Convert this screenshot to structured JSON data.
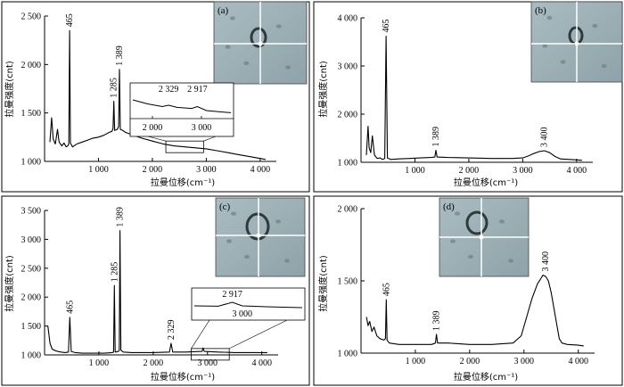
{
  "chart_data": [
    {
      "type": "line",
      "panel_label": "(a)",
      "xlabel": "拉曼位移(cm⁻¹)",
      "ylabel": "拉曼强度(cnt)",
      "xlim": [
        0,
        4300
      ],
      "ylim": [
        1000,
        2500
      ],
      "x_ticks": [
        1000,
        2000,
        3000,
        4000
      ],
      "x_tick_labels": [
        "1 000",
        "2 000",
        "3 000",
        "4 000"
      ],
      "y_ticks": [
        1000,
        1500,
        2000,
        2500
      ],
      "y_tick_labels": [
        "1 000",
        "1 500",
        "2 000",
        "2 500"
      ],
      "x": [
        100,
        130,
        160,
        200,
        240,
        270,
        320,
        360,
        400,
        430,
        450,
        465,
        480,
        520,
        600,
        700,
        800,
        900,
        1000,
        1100,
        1200,
        1250,
        1270,
        1285,
        1300,
        1350,
        1375,
        1389,
        1405,
        1450,
        1500,
        1600,
        1800,
        2000,
        2200,
        2400,
        2600,
        2800,
        3000,
        3200,
        3400,
        3600,
        3800,
        4000,
        4100
      ],
      "y": [
        1200,
        1450,
        1230,
        1180,
        1330,
        1200,
        1160,
        1190,
        1150,
        1160,
        1180,
        2350,
        1190,
        1150,
        1180,
        1200,
        1220,
        1240,
        1250,
        1270,
        1300,
        1310,
        1340,
        1620,
        1320,
        1330,
        1360,
        1950,
        1330,
        1320,
        1300,
        1280,
        1240,
        1210,
        1180,
        1160,
        1150,
        1140,
        1130,
        1110,
        1090,
        1070,
        1050,
        1030,
        1020
      ],
      "peak_labels": [
        {
          "x": 465,
          "y": 2350,
          "text": "465"
        },
        {
          "x": 1285,
          "y": 1620,
          "text": "1 285"
        },
        {
          "x": 1389,
          "y": 1950,
          "text": "1 389"
        }
      ],
      "inset": {
        "region_xlim": [
          2250,
          2950
        ],
        "region_ylim": [
          1100,
          1210
        ],
        "xlim": [
          1600,
          3600
        ],
        "x_ticks": [
          2000,
          3000
        ],
        "x_tick_labels": [
          "2 000",
          "3 000"
        ],
        "x": [
          1600,
          1900,
          2200,
          2329,
          2500,
          2800,
          2917,
          3100,
          3400,
          3600
        ],
        "y": [
          0.7,
          0.55,
          0.45,
          0.5,
          0.42,
          0.38,
          0.45,
          0.3,
          0.25,
          0.22
        ],
        "labels": [
          {
            "x": 2329,
            "text": "2 329"
          },
          {
            "x": 2917,
            "text": "2 917"
          }
        ]
      }
    },
    {
      "type": "line",
      "panel_label": "(b)",
      "xlabel": "拉曼位移(cm⁻¹)",
      "ylabel": "拉曼强度(cnt)",
      "xlim": [
        0,
        4300
      ],
      "ylim": [
        1000,
        4000
      ],
      "x_ticks": [
        1000,
        2000,
        3000,
        4000
      ],
      "x_tick_labels": [
        "1 000",
        "2 000",
        "3 000",
        "4 000"
      ],
      "y_ticks": [
        1000,
        2000,
        3000,
        4000
      ],
      "y_tick_labels": [
        "1 000",
        "2 000",
        "3 000",
        "4 000"
      ],
      "x": [
        100,
        130,
        150,
        180,
        210,
        250,
        300,
        350,
        400,
        440,
        465,
        490,
        550,
        700,
        900,
        1100,
        1300,
        1370,
        1389,
        1410,
        1600,
        2000,
        2400,
        2800,
        3000,
        3100,
        3200,
        3300,
        3400,
        3500,
        3600,
        3700,
        4000,
        4100
      ],
      "y": [
        1150,
        1750,
        1300,
        1200,
        1550,
        1150,
        1080,
        1090,
        1060,
        1080,
        3620,
        1090,
        1060,
        1070,
        1080,
        1090,
        1100,
        1110,
        1250,
        1110,
        1100,
        1090,
        1080,
        1080,
        1090,
        1130,
        1180,
        1220,
        1240,
        1200,
        1120,
        1070,
        1050,
        1040
      ],
      "peak_labels": [
        {
          "x": 465,
          "y": 3620,
          "text": "465"
        },
        {
          "x": 1389,
          "y": 1250,
          "text": "1 389"
        },
        {
          "x": 3400,
          "y": 1240,
          "text": "3 400"
        }
      ]
    },
    {
      "type": "line",
      "panel_label": "(c)",
      "xlabel": "拉曼位移(cm⁻¹)",
      "ylabel": "拉曼强度(cnt)",
      "xlim": [
        0,
        4300
      ],
      "ylim": [
        1000,
        3500
      ],
      "x_ticks": [
        1000,
        2000,
        3000,
        4000
      ],
      "x_tick_labels": [
        "1 000",
        "2 000",
        "3 000",
        "4 000"
      ],
      "y_ticks": [
        1000,
        1500,
        2000,
        2500,
        3000,
        3500
      ],
      "y_tick_labels": [
        "1 000",
        "1 500",
        "2 000",
        "2 500",
        "3 000",
        "3 500"
      ],
      "x": [
        60,
        100,
        140,
        180,
        240,
        300,
        380,
        440,
        465,
        490,
        560,
        700,
        900,
        1100,
        1250,
        1270,
        1285,
        1300,
        1360,
        1375,
        1389,
        1405,
        1450,
        1600,
        1800,
        2000,
        2300,
        2329,
        2360,
        2600,
        2900,
        2917,
        2940,
        3200,
        3500,
        3800,
        4000,
        4100
      ],
      "y": [
        1500,
        1200,
        1100,
        1080,
        1060,
        1050,
        1040,
        1050,
        1650,
        1060,
        1040,
        1030,
        1030,
        1030,
        1040,
        1050,
        2200,
        1050,
        1060,
        1080,
        3150,
        1080,
        1050,
        1040,
        1040,
        1040,
        1050,
        1200,
        1050,
        1050,
        1060,
        1120,
        1060,
        1050,
        1040,
        1040,
        1040,
        1040
      ],
      "peak_labels": [
        {
          "x": 465,
          "y": 1650,
          "text": "465"
        },
        {
          "x": 1285,
          "y": 2200,
          "text": "1 285"
        },
        {
          "x": 1389,
          "y": 3150,
          "text": "1 389"
        },
        {
          "x": 2329,
          "y": 1200,
          "text": "2 329"
        }
      ],
      "inset": {
        "region_xlim": [
          2700,
          3400
        ],
        "region_ylim": [
          1000,
          1110
        ],
        "xlim": [
          2600,
          3500
        ],
        "x": [
          2600,
          2800,
          2917,
          3000,
          3200,
          3500
        ],
        "y": [
          0.5,
          0.48,
          0.7,
          0.5,
          0.45,
          0.4
        ],
        "labels": [
          {
            "x": 2917,
            "text": "2 917",
            "pos": "top"
          },
          {
            "x": 3000,
            "text": "3 000",
            "pos": "bottom"
          }
        ]
      }
    },
    {
      "type": "line",
      "panel_label": "(d)",
      "xlabel": "拉曼位移(cm⁻¹)",
      "ylabel": "拉曼强度(cnt)",
      "xlim": [
        0,
        4300
      ],
      "ylim": [
        1000,
        2000
      ],
      "x_ticks": [
        1000,
        2000,
        3000,
        4000
      ],
      "x_tick_labels": [
        "1 000",
        "2 000",
        "3 000",
        "4 000"
      ],
      "y_ticks": [
        1000,
        1500,
        2000
      ],
      "y_tick_labels": [
        "1 000",
        "1 500",
        "2 000"
      ],
      "x": [
        100,
        130,
        160,
        200,
        240,
        290,
        350,
        420,
        450,
        465,
        480,
        520,
        700,
        900,
        1100,
        1300,
        1370,
        1389,
        1410,
        1600,
        2000,
        2400,
        2800,
        2950,
        3050,
        3150,
        3250,
        3300,
        3350,
        3400,
        3450,
        3500,
        3580,
        3650,
        3700,
        3800,
        4000,
        4100
      ],
      "y": [
        1250,
        1190,
        1220,
        1150,
        1180,
        1120,
        1100,
        1090,
        1100,
        1370,
        1090,
        1070,
        1060,
        1060,
        1060,
        1060,
        1070,
        1130,
        1070,
        1070,
        1060,
        1060,
        1070,
        1120,
        1250,
        1380,
        1480,
        1510,
        1540,
        1530,
        1500,
        1420,
        1250,
        1100,
        1070,
        1060,
        1055,
        1050
      ],
      "peak_labels": [
        {
          "x": 465,
          "y": 1370,
          "text": "465"
        },
        {
          "x": 1389,
          "y": 1130,
          "text": "1 389"
        },
        {
          "x": 3400,
          "y": 1540,
          "text": "3 400"
        }
      ]
    }
  ]
}
